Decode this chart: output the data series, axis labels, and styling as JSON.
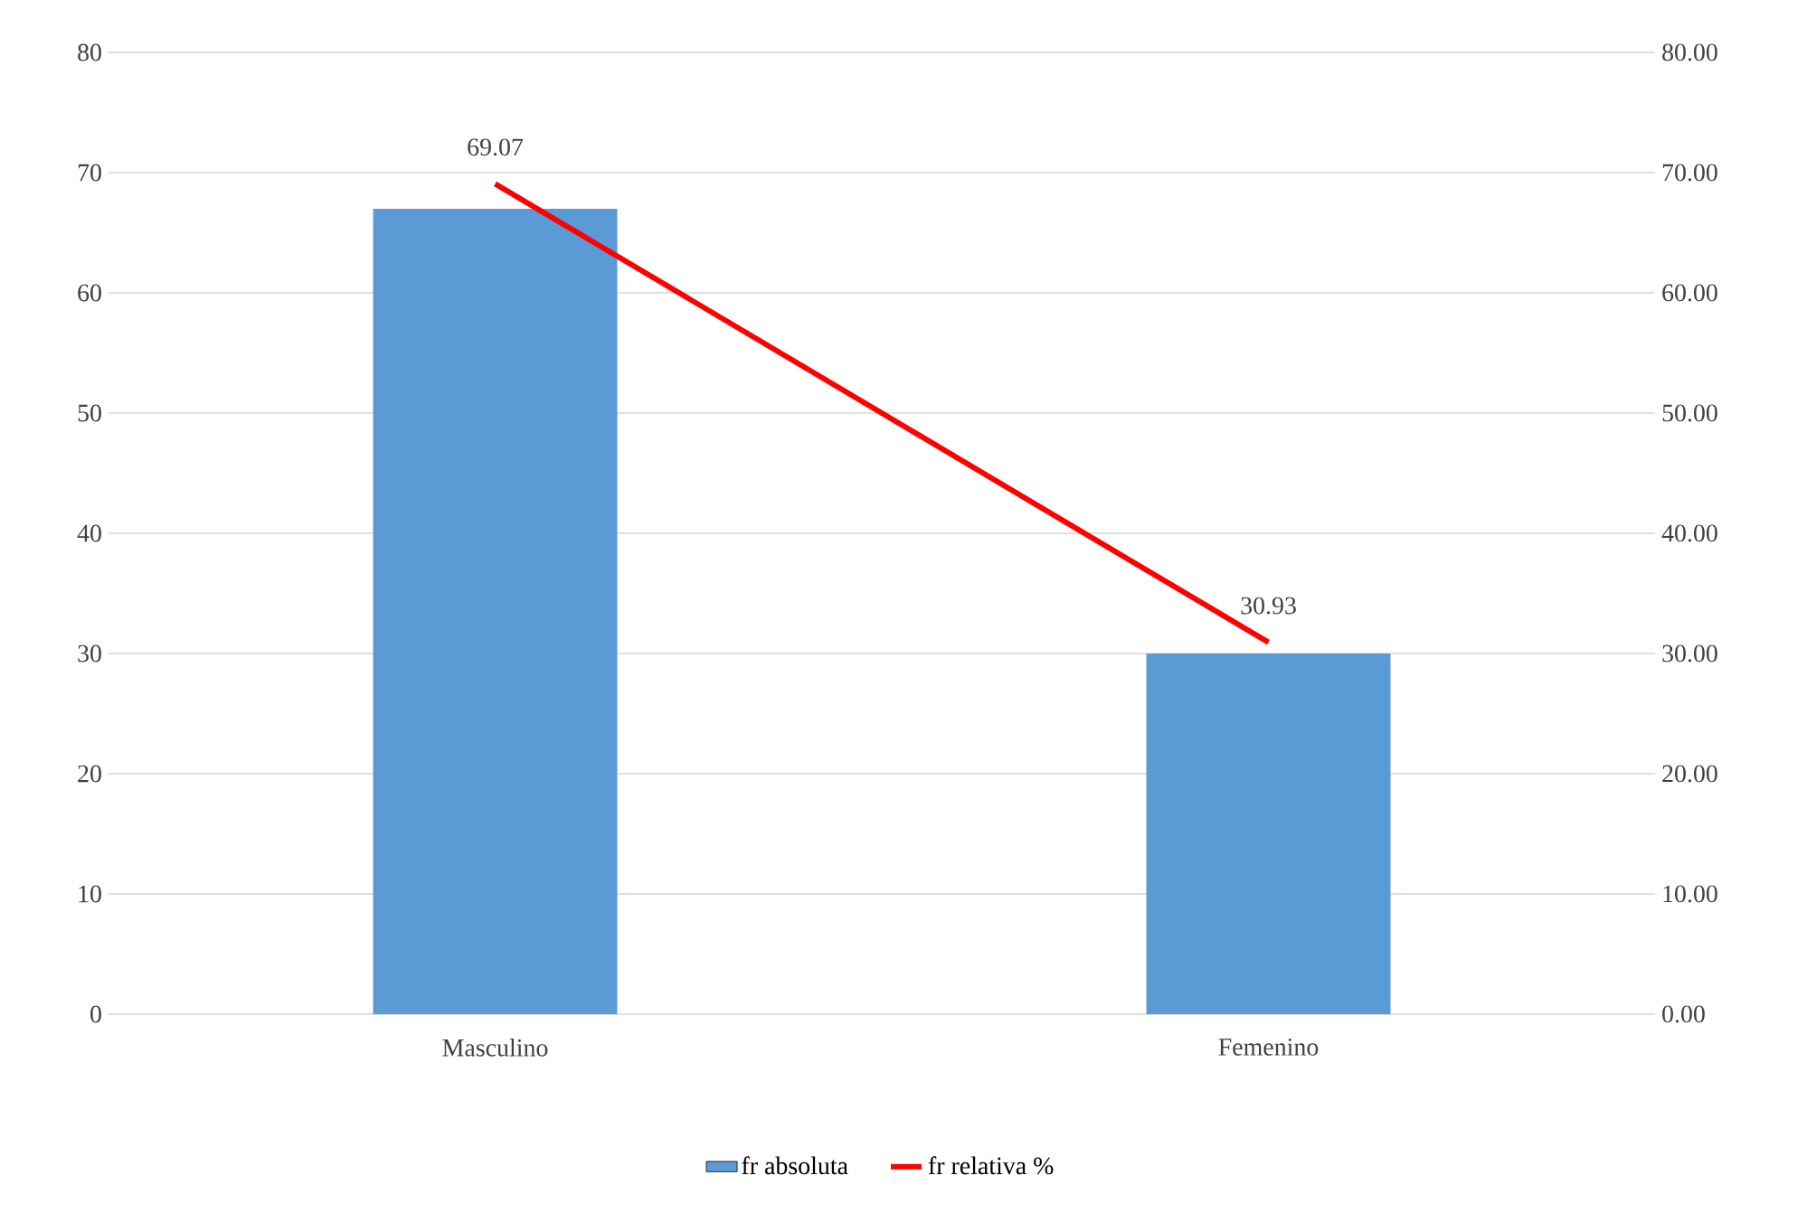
{
  "chart_data": {
    "type": "bar",
    "categories": [
      "Masculino",
      "Femenino"
    ],
    "series": [
      {
        "name": "fr absoluta",
        "color": "#5b9bd5",
        "values": [
          67,
          30
        ]
      },
      {
        "name": "fr relativa %",
        "type": "line",
        "axis": "y2",
        "color": "#ff0000",
        "values": [
          69.07,
          30.93
        ],
        "value_labels": [
          "69.07",
          "30.93"
        ]
      }
    ],
    "ylim": [
      0,
      80
    ],
    "yticks": [
      0,
      10,
      20,
      30,
      40,
      50,
      60,
      70,
      80
    ],
    "y2lim": [
      0,
      80
    ],
    "y2ticks": [
      {
        "value": 0,
        "label": "0.00"
      },
      {
        "value": 10,
        "label": "10.00"
      },
      {
        "value": 20,
        "label": "20.00"
      },
      {
        "value": 30,
        "label": "30.00"
      },
      {
        "value": 40,
        "label": "40.00"
      },
      {
        "value": 50,
        "label": "50.00"
      },
      {
        "value": 60,
        "label": "60.00"
      },
      {
        "value": 70,
        "label": "70.00"
      },
      {
        "value": 80,
        "label": "80.00"
      }
    ],
    "grid": "y",
    "legend": "bottom"
  }
}
